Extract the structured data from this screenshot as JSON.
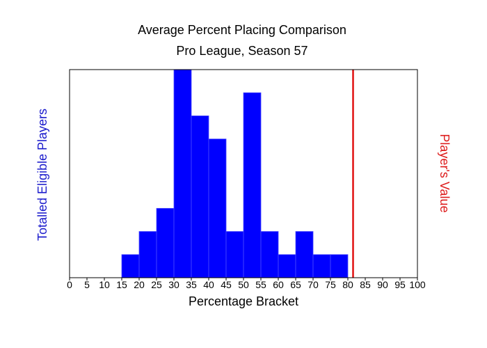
{
  "chart_data": {
    "type": "bar",
    "title": "Average Percent Placing Comparison",
    "subtitle": "Pro League, Season 57",
    "xlabel": "Percentage Bracket",
    "ylabel_left": "Totalled Eligible Players",
    "ylabel_right": "Player's Value",
    "xlim": [
      0,
      100
    ],
    "ylim": [
      0,
      9
    ],
    "x_ticks": [
      "0",
      "5",
      "10",
      "15",
      "20",
      "25",
      "30",
      "35",
      "40",
      "45",
      "50",
      "55",
      "60",
      "65",
      "70",
      "75",
      "80",
      "85",
      "90",
      "95",
      "100"
    ],
    "bin_width": 5,
    "bins": [
      {
        "start": 15,
        "value": 1
      },
      {
        "start": 20,
        "value": 2
      },
      {
        "start": 25,
        "value": 3
      },
      {
        "start": 30,
        "value": 9
      },
      {
        "start": 35,
        "value": 7
      },
      {
        "start": 40,
        "value": 6
      },
      {
        "start": 45,
        "value": 2
      },
      {
        "start": 50,
        "value": 8
      },
      {
        "start": 55,
        "value": 2
      },
      {
        "start": 60,
        "value": 1
      },
      {
        "start": 65,
        "value": 2
      },
      {
        "start": 70,
        "value": 1
      },
      {
        "start": 75,
        "value": 1
      }
    ],
    "player_value": 81.5,
    "colors": {
      "bars": "#0000ff",
      "bar_edge": "#4a4aff",
      "player_line": "#e01010",
      "left_label": "#1a1acc",
      "right_label": "#dd1a1a"
    },
    "grid": false,
    "legend": "none"
  }
}
